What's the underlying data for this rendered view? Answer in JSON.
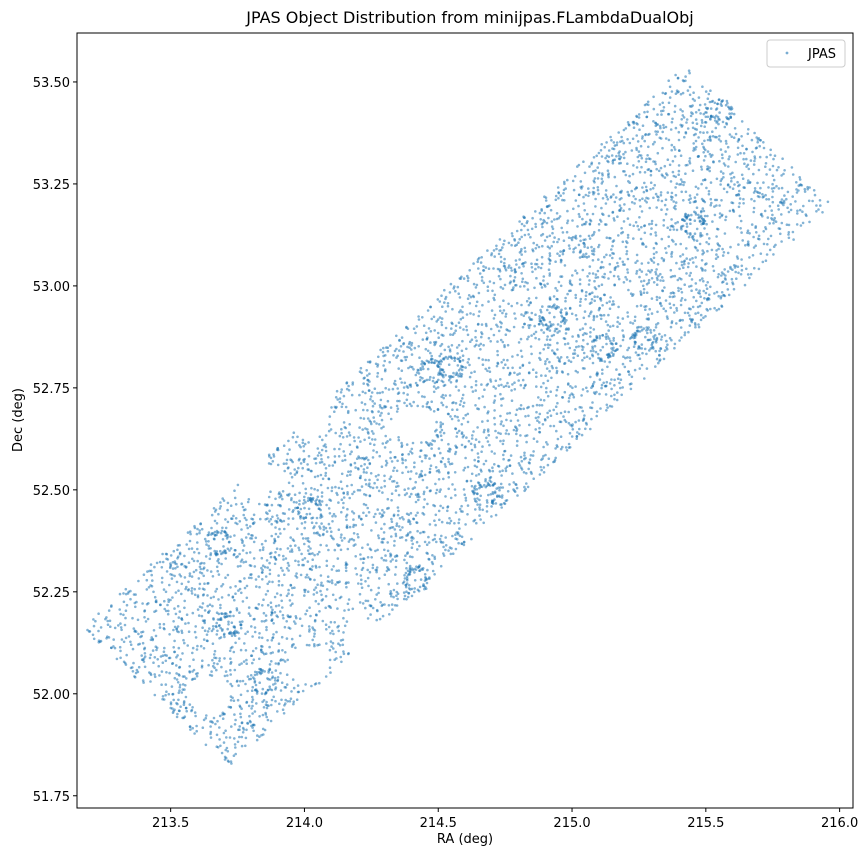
{
  "chart_data": {
    "type": "scatter",
    "title": "JPAS Object Distribution from minijpas.FLambdaDualObj",
    "xlabel": "RA (deg)",
    "ylabel": "Dec (deg)",
    "xlim": [
      213.15,
      216.05
    ],
    "ylim": [
      51.72,
      53.62
    ],
    "x_ticks": [
      213.5,
      214.0,
      214.5,
      215.0,
      215.5,
      216.0
    ],
    "x_tick_labels": [
      "213.5",
      "214.0",
      "214.5",
      "215.0",
      "215.5",
      "216.0"
    ],
    "y_ticks": [
      51.75,
      52.0,
      52.25,
      52.5,
      52.75,
      53.0,
      53.25,
      53.5
    ],
    "y_tick_labels": [
      "51.75",
      "52.00",
      "52.25",
      "52.50",
      "52.75",
      "53.00",
      "53.25",
      "53.50"
    ],
    "grid": false,
    "legend_position": "top-right",
    "series": [
      {
        "name": "JPAS",
        "color": "#1f77b4",
        "footprint_corners": [
          [
            213.17,
            52.16
          ],
          [
            213.72,
            51.82
          ],
          [
            215.98,
            53.2
          ],
          [
            215.42,
            53.54
          ]
        ],
        "dense_clumps": [
          [
            213.72,
            52.17
          ],
          [
            213.85,
            52.03
          ],
          [
            214.02,
            52.45
          ],
          [
            214.47,
            52.79
          ],
          [
            214.55,
            52.8
          ],
          [
            214.68,
            52.49
          ],
          [
            214.93,
            52.92
          ],
          [
            215.12,
            52.85
          ],
          [
            215.27,
            52.87
          ],
          [
            215.45,
            53.15
          ],
          [
            215.55,
            53.43
          ],
          [
            214.42,
            52.28
          ],
          [
            213.68,
            52.37
          ]
        ],
        "empty_holes": [
          [
            213.82,
            52.53
          ],
          [
            214.02,
            52.07
          ],
          [
            214.42,
            52.66
          ],
          [
            214.22,
            52.14
          ],
          [
            214.02,
            52.67
          ],
          [
            213.64,
            52.0
          ]
        ]
      }
    ]
  }
}
